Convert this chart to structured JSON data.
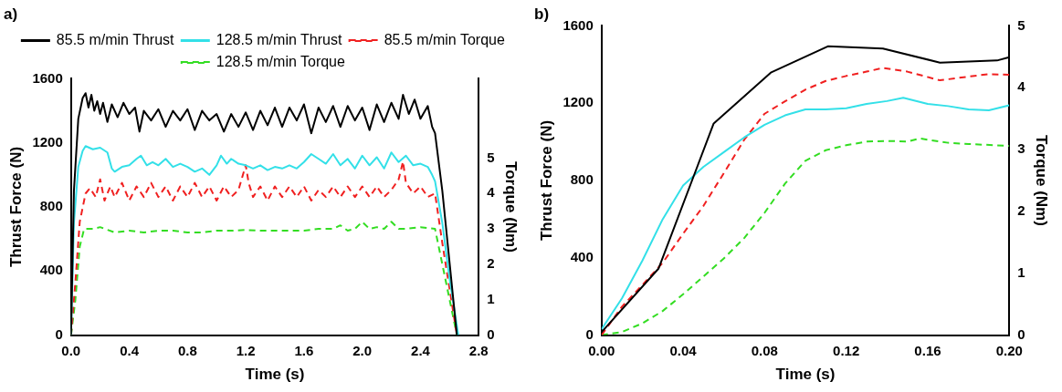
{
  "chart_data": [
    {
      "type": "line",
      "title": "a)",
      "xlabel": "Time (s)",
      "ylabel": "Thrust Force (N)",
      "y2label": "Torque (Nm)",
      "xlim": [
        0,
        2.8
      ],
      "xticks": [
        {
          "value": 0,
          "label": "0.0"
        },
        0.4,
        0.8,
        1.2,
        1.6,
        {
          "value": 2,
          "label": "2.0"
        },
        2.4,
        2.8
      ],
      "ylim": [
        0,
        1600
      ],
      "yticks": [
        0,
        400,
        800,
        1200,
        1600
      ],
      "y2lim": [
        0,
        7.24
      ],
      "y2ticks": [
        0,
        1,
        2,
        3,
        4,
        5
      ],
      "grid": false,
      "legend": "top",
      "marker": "none",
      "series": [
        {
          "name": "85.5 m/min Thrust",
          "color": "#000000",
          "line_style": "solid",
          "x": [
            0,
            0.02,
            0.05,
            0.08,
            0.1,
            0.12,
            0.14,
            0.16,
            0.18,
            0.2,
            0.22,
            0.25,
            0.28,
            0.32,
            0.36,
            0.4,
            0.44,
            0.47,
            0.5,
            0.55,
            0.6,
            0.65,
            0.7,
            0.75,
            0.8,
            0.85,
            0.9,
            0.95,
            1.0,
            1.05,
            1.1,
            1.15,
            1.2,
            1.25,
            1.3,
            1.35,
            1.4,
            1.45,
            1.5,
            1.55,
            1.6,
            1.65,
            1.7,
            1.75,
            1.8,
            1.85,
            1.9,
            1.95,
            2.0,
            2.05,
            2.1,
            2.15,
            2.2,
            2.25,
            2.28,
            2.32,
            2.36,
            2.4,
            2.45,
            2.48,
            2.5,
            2.55,
            2.6,
            2.65
          ],
          "values": [
            0,
            900,
            1350,
            1480,
            1510,
            1420,
            1500,
            1400,
            1460,
            1380,
            1450,
            1330,
            1440,
            1360,
            1450,
            1380,
            1420,
            1270,
            1400,
            1340,
            1410,
            1300,
            1400,
            1340,
            1410,
            1280,
            1400,
            1340,
            1380,
            1270,
            1380,
            1300,
            1390,
            1280,
            1400,
            1310,
            1420,
            1300,
            1420,
            1340,
            1440,
            1260,
            1420,
            1330,
            1430,
            1300,
            1430,
            1340,
            1420,
            1280,
            1440,
            1330,
            1450,
            1350,
            1500,
            1380,
            1470,
            1350,
            1430,
            1300,
            1260,
            900,
            450,
            0
          ]
        },
        {
          "name": "128.5 m/min Thrust",
          "color": "#33e0e8",
          "line_style": "solid",
          "x": [
            0,
            0.02,
            0.05,
            0.08,
            0.1,
            0.15,
            0.2,
            0.25,
            0.28,
            0.3,
            0.35,
            0.4,
            0.45,
            0.48,
            0.52,
            0.56,
            0.6,
            0.65,
            0.7,
            0.75,
            0.8,
            0.85,
            0.9,
            0.95,
            1.0,
            1.03,
            1.07,
            1.1,
            1.15,
            1.2,
            1.25,
            1.3,
            1.35,
            1.4,
            1.45,
            1.5,
            1.55,
            1.6,
            1.65,
            1.7,
            1.75,
            1.8,
            1.85,
            1.9,
            1.95,
            2.0,
            2.05,
            2.1,
            2.15,
            2.2,
            2.25,
            2.3,
            2.35,
            2.4,
            2.45,
            2.48,
            2.5,
            2.55,
            2.6,
            2.66
          ],
          "values": [
            0,
            700,
            1050,
            1150,
            1180,
            1160,
            1170,
            1140,
            1040,
            1020,
            1050,
            1060,
            1100,
            1120,
            1060,
            1080,
            1060,
            1100,
            1050,
            1070,
            1050,
            1020,
            1040,
            1000,
            1060,
            1120,
            1070,
            1100,
            1070,
            1060,
            1040,
            1060,
            1030,
            1050,
            1040,
            1060,
            1040,
            1080,
            1130,
            1100,
            1070,
            1130,
            1060,
            1100,
            1040,
            1120,
            1060,
            1110,
            1040,
            1140,
            1080,
            1120,
            1060,
            1070,
            1050,
            1000,
            960,
            700,
            350,
            0
          ]
        },
        {
          "name": "85.5 m/min Torque",
          "color": "#f02020",
          "line_style": "dashed",
          "axis": "y2",
          "x": [
            0,
            0.03,
            0.06,
            0.1,
            0.13,
            0.17,
            0.2,
            0.23,
            0.27,
            0.3,
            0.35,
            0.4,
            0.45,
            0.5,
            0.55,
            0.6,
            0.65,
            0.7,
            0.75,
            0.8,
            0.85,
            0.9,
            0.95,
            1.0,
            1.05,
            1.1,
            1.15,
            1.2,
            1.22,
            1.25,
            1.3,
            1.35,
            1.4,
            1.45,
            1.5,
            1.55,
            1.6,
            1.65,
            1.7,
            1.75,
            1.8,
            1.85,
            1.9,
            1.95,
            2.0,
            2.05,
            2.1,
            2.15,
            2.2,
            2.25,
            2.28,
            2.3,
            2.35,
            2.4,
            2.45,
            2.5,
            2.55,
            2.6,
            2.65
          ],
          "values": [
            0,
            1.5,
            3.2,
            4.0,
            4.15,
            3.9,
            4.4,
            3.8,
            4.2,
            3.9,
            4.3,
            3.8,
            4.2,
            3.9,
            4.3,
            3.9,
            4.2,
            3.8,
            4.2,
            3.9,
            4.3,
            3.9,
            4.2,
            3.8,
            4.2,
            3.9,
            4.1,
            4.8,
            4.3,
            3.9,
            4.2,
            3.8,
            4.2,
            3.9,
            4.2,
            3.9,
            4.2,
            3.8,
            4.1,
            3.9,
            4.2,
            3.9,
            4.2,
            3.9,
            4.2,
            3.9,
            4.2,
            3.9,
            4.1,
            4.4,
            4.9,
            4.3,
            4.0,
            4.2,
            3.9,
            4.0,
            2.6,
            1.3,
            0
          ]
        },
        {
          "name": "128.5 m/min Torque",
          "color": "#33dd22",
          "line_style": "dashed",
          "axis": "y2",
          "x": [
            0,
            0.03,
            0.06,
            0.09,
            0.15,
            0.2,
            0.3,
            0.4,
            0.5,
            0.6,
            0.7,
            0.8,
            0.9,
            1.0,
            1.1,
            1.2,
            1.3,
            1.4,
            1.5,
            1.6,
            1.7,
            1.8,
            1.85,
            1.9,
            1.95,
            2.0,
            2.05,
            2.1,
            2.15,
            2.2,
            2.25,
            2.3,
            2.4,
            2.5,
            2.55,
            2.6,
            2.65
          ],
          "values": [
            0,
            1.0,
            2.5,
            3.0,
            3.0,
            3.05,
            2.9,
            2.95,
            2.9,
            2.95,
            2.95,
            2.9,
            2.9,
            2.95,
            2.95,
            2.97,
            2.95,
            2.95,
            2.95,
            2.95,
            3.0,
            3.0,
            3.1,
            2.95,
            3.0,
            3.2,
            3.0,
            3.05,
            3.0,
            3.2,
            3.0,
            3.0,
            3.05,
            3.0,
            2.0,
            1.0,
            0
          ]
        }
      ]
    },
    {
      "type": "line",
      "title": "b)",
      "xlabel": "Time (s)",
      "ylabel": "Thrust Force (N)",
      "y2label": "Torque (Nm)",
      "xlim": [
        0,
        0.2
      ],
      "xticks": [
        {
          "value": 0,
          "label": "0.00"
        },
        0.04,
        0.08,
        0.12,
        0.16,
        {
          "value": 0.2,
          "label": "0.20"
        }
      ],
      "ylim": [
        0,
        1600
      ],
      "yticks": [
        0,
        400,
        800,
        1200,
        1600
      ],
      "y2lim": [
        0,
        5
      ],
      "y2ticks": [
        0,
        1,
        2,
        3,
        4,
        5
      ],
      "grid": false,
      "legend": false,
      "marker": "none",
      "series": [
        {
          "color": "#000000",
          "line_style": "solid",
          "x": [
            0,
            0.028,
            0.055,
            0.083,
            0.111,
            0.138,
            0.166,
            0.194,
            0.2
          ],
          "values": [
            15,
            345,
            1095,
            1358,
            1494,
            1483,
            1410,
            1421,
            1438
          ]
        },
        {
          "color": "#33e0e8",
          "line_style": "solid",
          "x": [
            0,
            0.01,
            0.02,
            0.03,
            0.04,
            0.05,
            0.06,
            0.07,
            0.08,
            0.09,
            0.1,
            0.11,
            0.12,
            0.13,
            0.14,
            0.148,
            0.16,
            0.17,
            0.18,
            0.19,
            0.2
          ],
          "values": [
            30,
            190,
            385,
            600,
            774,
            871,
            947,
            1023,
            1088,
            1137,
            1168,
            1168,
            1174,
            1196,
            1211,
            1228,
            1196,
            1185,
            1168,
            1163,
            1189
          ]
        },
        {
          "color": "#f02020",
          "line_style": "dashed",
          "axis": "y2",
          "x": [
            0,
            0.01,
            0.02,
            0.03,
            0.04,
            0.05,
            0.06,
            0.07,
            0.08,
            0.09,
            0.1,
            0.11,
            0.12,
            0.13,
            0.138,
            0.15,
            0.166,
            0.18,
            0.19,
            0.2
          ],
          "values": [
            0,
            0.46,
            0.81,
            1.17,
            1.64,
            2.09,
            2.62,
            3.16,
            3.58,
            3.78,
            3.97,
            4.11,
            4.19,
            4.26,
            4.32,
            4.26,
            4.12,
            4.18,
            4.22,
            4.21
          ]
        },
        {
          "color": "#33dd22",
          "line_style": "dashed",
          "axis": "y2",
          "x": [
            0,
            0.01,
            0.02,
            0.03,
            0.04,
            0.05,
            0.06,
            0.07,
            0.08,
            0.09,
            0.1,
            0.11,
            0.12,
            0.13,
            0.14,
            0.15,
            0.156,
            0.17,
            0.18,
            0.2
          ],
          "values": [
            0,
            0.05,
            0.19,
            0.39,
            0.66,
            0.95,
            1.24,
            1.57,
            1.98,
            2.45,
            2.82,
            2.99,
            3.07,
            3.13,
            3.14,
            3.13,
            3.18,
            3.11,
            3.09,
            3.06
          ]
        }
      ]
    }
  ]
}
